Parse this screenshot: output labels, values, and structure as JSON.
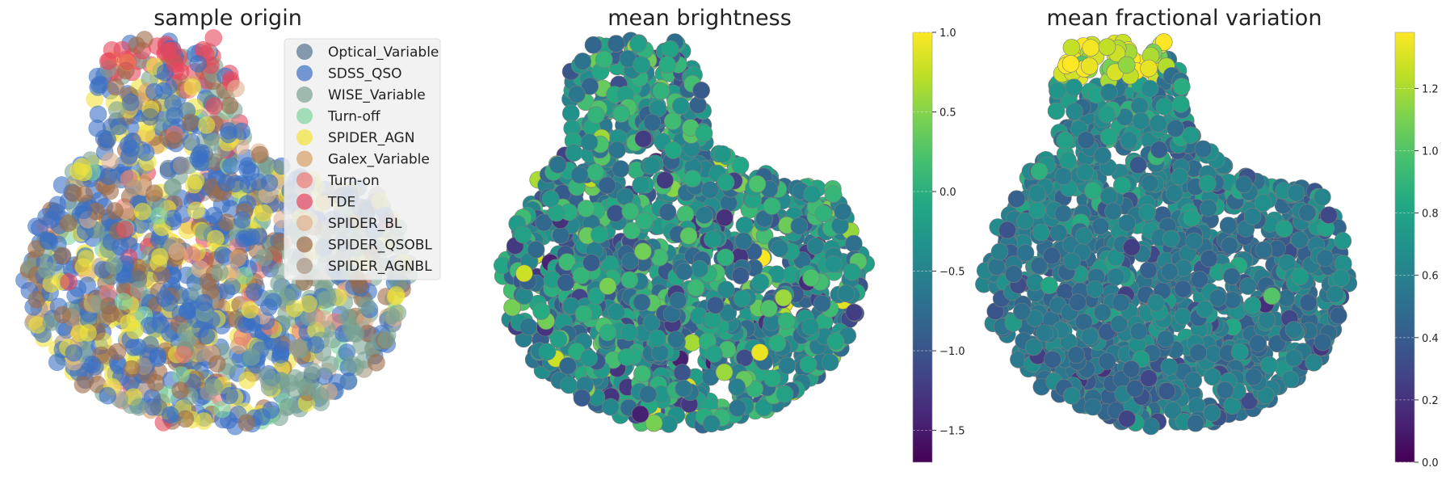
{
  "chart_data": [
    {
      "type": "scatter",
      "title": "sample origin",
      "xlabel": "",
      "ylabel": "",
      "grid": false,
      "axes_visible": false,
      "legend_placement": "top-right",
      "n_points_approx": 1400,
      "series": [
        {
          "name": "Optical_Variable",
          "color": "#56728f"
        },
        {
          "name": "SDSS_QSO",
          "color": "#3a6fc4"
        },
        {
          "name": "WISE_Variable",
          "color": "#7aa393"
        },
        {
          "name": "Turn-off",
          "color": "#7fd6a0"
        },
        {
          "name": "SPIDER_AGN",
          "color": "#f2e23a"
        },
        {
          "name": "Galex_Variable",
          "color": "#d9a066"
        },
        {
          "name": "Turn-on",
          "color": "#ee7b74"
        },
        {
          "name": "TDE",
          "color": "#e8465c"
        },
        {
          "name": "SPIDER_BL",
          "color": "#e0b08e"
        },
        {
          "name": "SPIDER_QSOBL",
          "color": "#9c6a47"
        },
        {
          "name": "SPIDER_AGNBL",
          "color": "#a89682"
        }
      ]
    },
    {
      "type": "scatter",
      "title": "mean brightness",
      "xlabel": "",
      "ylabel": "",
      "grid": false,
      "axes_visible": false,
      "colormap": "viridis",
      "colorbar": {
        "range": [
          -1.7,
          1.0
        ],
        "ticks": [
          1.0,
          0.5,
          0.0,
          -0.5,
          -1.0,
          -1.5
        ],
        "tick_labels": [
          "1.0",
          "0.5",
          "0.0",
          "−0.5",
          "−1.0",
          "−1.5"
        ]
      }
    },
    {
      "type": "scatter",
      "title": "mean fractional variation",
      "xlabel": "",
      "ylabel": "",
      "grid": false,
      "axes_visible": false,
      "colormap": "viridis",
      "colorbar": {
        "range": [
          0.0,
          1.38
        ],
        "ticks": [
          1.2,
          1.0,
          0.8,
          0.6,
          0.4,
          0.2,
          0.0
        ],
        "tick_labels": [
          "1.2",
          "1.0",
          "0.8",
          "0.6",
          "0.4",
          "0.2",
          "0.0"
        ]
      }
    }
  ]
}
